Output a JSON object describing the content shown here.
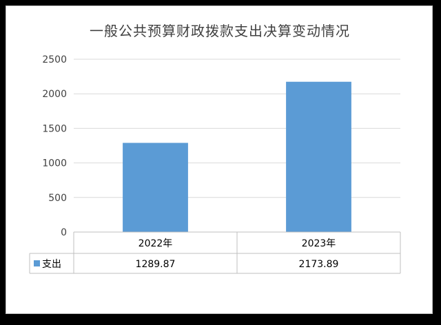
{
  "chart_data": {
    "type": "bar",
    "title": "一般公共预算财政拨款支出决算变动情况",
    "categories": [
      "2022年",
      "2023年"
    ],
    "series": [
      {
        "name": "支出",
        "values": [
          1289.87,
          2173.89
        ],
        "value_labels": [
          "1289.87",
          "2173.89"
        ],
        "color": "#5b9bd5"
      }
    ],
    "ylim": [
      0,
      2500
    ],
    "yticks": [
      0,
      500,
      1000,
      1500,
      2000,
      2500
    ],
    "grid": true,
    "legend": "data-table",
    "xlabel": "",
    "ylabel": ""
  }
}
